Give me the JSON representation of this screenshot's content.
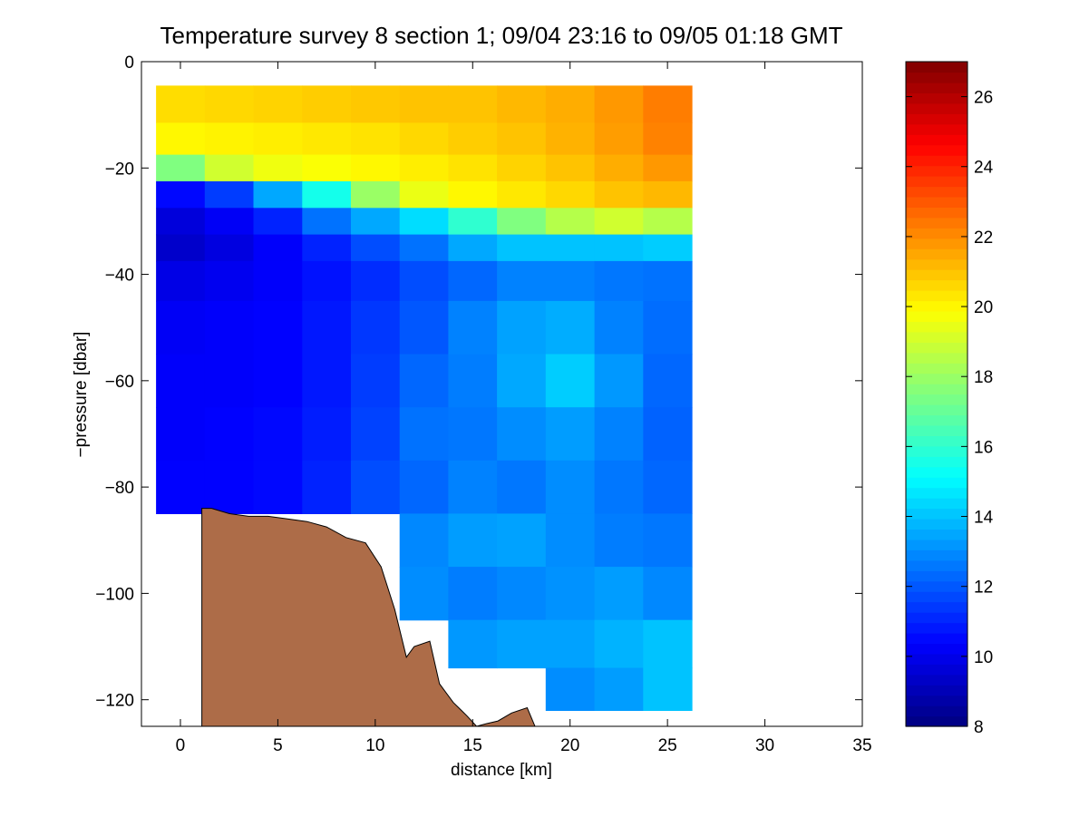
{
  "chart_data": {
    "type": "heatmap",
    "title": "Temperature survey 8 section 1; 09/04 23:16 to 09/05 01:18 GMT",
    "xlabel": "distance [km]",
    "ylabel": "−pressure [dbar]",
    "xlim": [
      -2,
      35
    ],
    "ylim": [
      -125,
      0
    ],
    "xticks": [
      0,
      5,
      10,
      15,
      20,
      25,
      30,
      35
    ],
    "yticks": [
      0,
      -20,
      -40,
      -60,
      -80,
      -100,
      -120
    ],
    "xtick_labels": [
      "0",
      "5",
      "10",
      "15",
      "20",
      "25",
      "30",
      "35"
    ],
    "ytick_labels": [
      "0",
      "−20",
      "−40",
      "−60",
      "−80",
      "−100",
      "−120"
    ],
    "colorbar": {
      "min": 8,
      "max": 27,
      "ticks": [
        8,
        10,
        12,
        14,
        16,
        18,
        20,
        22,
        24,
        26
      ],
      "tick_labels": [
        "8",
        "10",
        "12",
        "14",
        "16",
        "18",
        "20",
        "22",
        "24",
        "26"
      ],
      "colormap": "jet"
    },
    "x": [
      0,
      2.5,
      5,
      7.5,
      10,
      12.5,
      15,
      17.5,
      20,
      22.5,
      25
    ],
    "depth": [
      -8,
      -15,
      -20,
      -25,
      -30,
      -35,
      -40,
      -50,
      -60,
      -70,
      -80,
      -90,
      -100,
      -110,
      -118
    ],
    "temperature": [
      [
        20.5,
        20.6,
        20.7,
        20.8,
        20.9,
        21.0,
        21.0,
        21.2,
        21.4,
        21.8,
        22.3
      ],
      [
        20.0,
        20.1,
        20.2,
        20.3,
        20.4,
        20.6,
        20.8,
        21.0,
        21.3,
        21.7,
        22.2
      ],
      [
        17.5,
        19.0,
        19.6,
        19.8,
        20.0,
        20.2,
        20.4,
        20.7,
        21.0,
        21.4,
        21.8
      ],
      [
        10.5,
        11.5,
        13.5,
        15.5,
        18.0,
        19.5,
        20.0,
        20.3,
        20.6,
        21.0,
        21.2
      ],
      [
        9.7,
        10.2,
        11.0,
        12.5,
        13.5,
        14.5,
        16.0,
        17.5,
        18.5,
        19.0,
        18.5
      ],
      [
        9.4,
        9.8,
        10.3,
        11.0,
        11.8,
        12.5,
        13.5,
        14.0,
        14.0,
        14.0,
        14.2
      ],
      [
        9.9,
        10.1,
        10.3,
        10.7,
        11.2,
        11.8,
        12.3,
        12.8,
        12.8,
        12.6,
        12.5
      ],
      [
        10.2,
        10.3,
        10.4,
        10.8,
        11.4,
        12.0,
        12.8,
        13.4,
        13.6,
        12.8,
        12.4
      ],
      [
        10.3,
        10.3,
        10.4,
        10.8,
        11.5,
        12.3,
        12.7,
        13.5,
        14.2,
        13.2,
        12.3
      ],
      [
        10.3,
        10.4,
        10.5,
        10.9,
        11.6,
        12.5,
        12.6,
        13.0,
        13.3,
        12.8,
        12.2
      ],
      [
        10.4,
        10.4,
        10.5,
        11.0,
        11.8,
        12.3,
        12.8,
        12.6,
        13.0,
        12.6,
        12.3
      ],
      [
        null,
        null,
        null,
        null,
        null,
        12.9,
        13.3,
        13.4,
        13.0,
        12.7,
        12.6
      ],
      [
        null,
        null,
        null,
        null,
        null,
        13.0,
        12.7,
        12.9,
        13.1,
        13.3,
        12.9
      ],
      [
        null,
        null,
        null,
        null,
        null,
        null,
        13.2,
        13.4,
        13.4,
        13.7,
        14.0
      ],
      [
        null,
        null,
        null,
        null,
        null,
        null,
        null,
        null,
        13.0,
        13.3,
        14.0
      ]
    ],
    "bathymetry": {
      "color": "#ad6c48",
      "x": [
        1.1,
        1.6,
        2.5,
        3.5,
        4.5,
        5.5,
        6.5,
        7.5,
        8.5,
        9.5,
        10.3,
        11.0,
        11.6,
        12.0,
        12.8,
        13.3,
        14.0,
        14.7,
        15.2,
        15.7,
        16.3,
        17.0,
        17.8,
        18.2
      ],
      "y": [
        -84,
        -84,
        -85,
        -85.5,
        -85.5,
        -86,
        -86.5,
        -87.5,
        -89.5,
        -90.5,
        -95,
        -103,
        -112,
        -110,
        -109,
        -117,
        -120.5,
        -123,
        -125,
        -124.5,
        -124,
        -122.5,
        -121.5,
        -125
      ]
    }
  }
}
